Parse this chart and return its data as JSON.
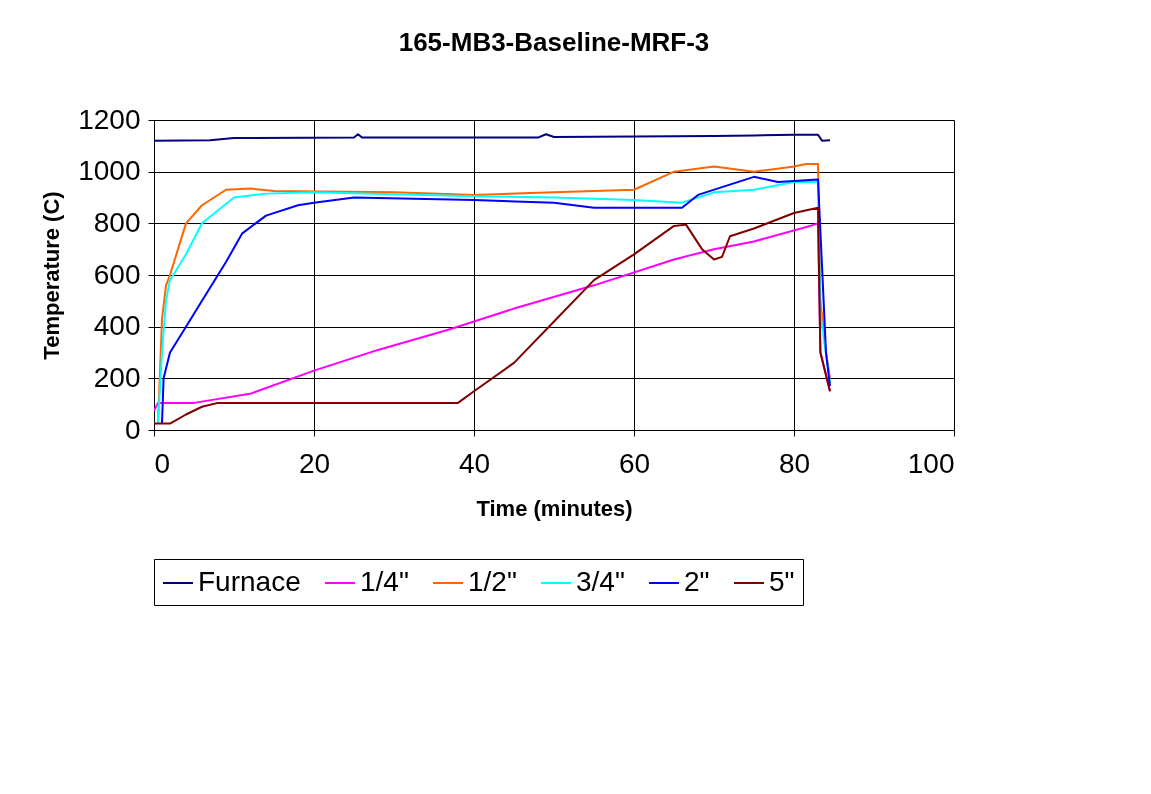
{
  "chart_data": {
    "type": "line",
    "title": "165-MB3-Baseline-MRF-3",
    "xlabel": "Time (minutes)",
    "ylabel": "Temperature (C)",
    "xlim": [
      0,
      100
    ],
    "xticks": [
      0,
      20,
      40,
      60,
      80,
      100
    ],
    "ylim": [
      0,
      1200
    ],
    "yticks": [
      0,
      200,
      400,
      600,
      800,
      1000,
      1200
    ],
    "grid": true,
    "legend": "bottom",
    "line_style": "solid",
    "marker": "none",
    "series": [
      {
        "name": "Furnace",
        "color": "#000080",
        "x": [
          0,
          7,
          10,
          25,
          25.5,
          26,
          48,
          49,
          50,
          60,
          70,
          75,
          80,
          83,
          83.5,
          84.5
        ],
        "values": [
          1120,
          1122,
          1130,
          1132,
          1145,
          1132,
          1132,
          1145,
          1134,
          1136,
          1138,
          1140,
          1143,
          1143,
          1120,
          1122
        ]
      },
      {
        "name": "1/4\"",
        "color": "#ff00ff",
        "x": [
          0,
          0.5,
          5,
          12,
          20,
          28,
          37,
          45,
          55,
          65,
          70,
          75,
          82,
          83,
          83.3,
          84.5
        ],
        "values": [
          75,
          105,
          105,
          140,
          230,
          310,
          390,
          470,
          560,
          660,
          700,
          730,
          790,
          800,
          300,
          150
        ]
      },
      {
        "name": "1/2\"",
        "color": "#ff6600",
        "x": [
          0.5,
          1,
          1.5,
          2,
          3,
          4,
          6,
          9,
          12,
          15,
          30,
          40,
          50,
          60,
          65,
          70,
          75,
          80,
          81.5,
          83,
          83.3,
          84,
          84.5
        ],
        "values": [
          25,
          430,
          560,
          600,
          700,
          800,
          870,
          930,
          935,
          925,
          920,
          910,
          920,
          930,
          1000,
          1020,
          1000,
          1020,
          1030,
          1030,
          500,
          300,
          200
        ]
      },
      {
        "name": "3/4\"",
        "color": "#00ffff",
        "x": [
          0.5,
          1,
          1.5,
          2,
          4,
          6,
          10,
          14,
          20,
          40,
          50,
          60,
          66,
          70,
          75,
          80,
          83,
          83.3,
          84.5
        ],
        "values": [
          25,
          300,
          500,
          580,
          680,
          800,
          900,
          915,
          920,
          905,
          900,
          890,
          880,
          920,
          930,
          960,
          960,
          450,
          180
        ]
      },
      {
        "name": "2\"",
        "color": "#0000ff",
        "x": [
          1,
          1.2,
          2,
          4,
          6,
          9,
          11,
          14,
          18,
          20,
          25,
          40,
          50,
          55,
          66,
          68,
          71,
          75,
          78,
          83,
          84,
          84.5
        ],
        "values": [
          25,
          200,
          300,
          400,
          500,
          650,
          760,
          830,
          870,
          880,
          900,
          890,
          880,
          860,
          860,
          910,
          940,
          980,
          960,
          970,
          300,
          170
        ]
      },
      {
        "name": "5\"",
        "color": "#800000",
        "x": [
          0,
          2,
          4,
          6,
          8,
          38,
          40,
          45,
          50,
          55,
          60,
          65,
          66.5,
          68.5,
          70,
          71,
          72,
          75,
          80,
          83,
          83.3,
          84.5
        ],
        "values": [
          25,
          25,
          60,
          90,
          105,
          105,
          150,
          260,
          420,
          580,
          680,
          790,
          795,
          700,
          660,
          670,
          750,
          780,
          840,
          860,
          300,
          150
        ]
      }
    ]
  }
}
